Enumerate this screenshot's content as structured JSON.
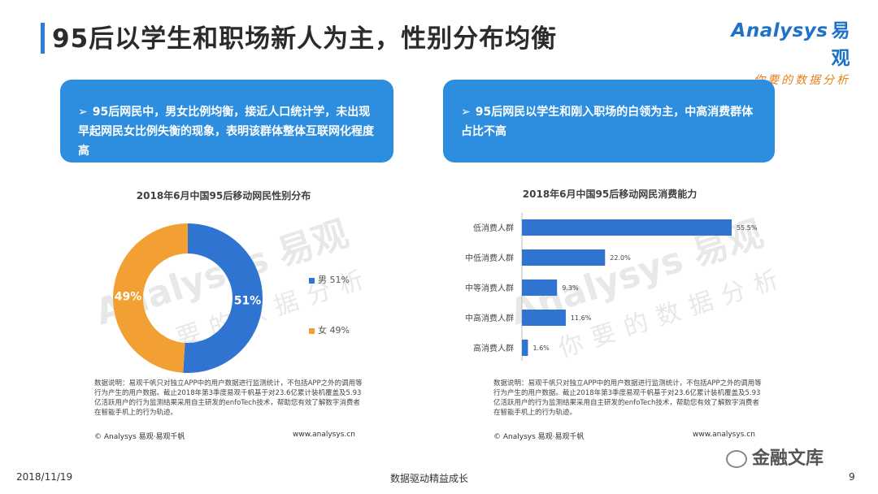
{
  "page": {
    "title": "95后以学生和职场新人为主，性别分布均衡",
    "logo_line1": "Analysys",
    "logo_line1_cn": "易观",
    "logo_line2": "你要的数据分析",
    "date": "2018/11/19",
    "footer_center": "数据驱动精益成长",
    "page_number": "9",
    "wechat_label": "金融文库"
  },
  "callouts": [
    {
      "arrow": "➢",
      "text": "95后网民中，男女比例均衡，接近人口统计学，未出现早起网民女比例失衡的现象，表明该群体整体互联网化程度高"
    },
    {
      "arrow": "➢",
      "text": "95后网民以学生和刚入职场的白领为主，中高消费群体占比不高"
    }
  ],
  "notes": {
    "text": "数据说明：易观千帆只对独立APP中的用户数据进行监测统计，不包括APP之外的调用等行为产生的用户数据。截止2018年第3季度易观千帆基于对23.6亿累计装机覆盖及5.93亿活跃用户的行为监测结果采用自主研发的enfoTech技术，帮助您有效了解数字消费者在智能手机上的行为轨迹。",
    "copyright": "© Analysys 易观·易观千帆",
    "site": "www.analysys.cn"
  },
  "watermark": {
    "brand": "Analysys 易观",
    "slogan": "你要的数据分析"
  },
  "chart_data": [
    {
      "type": "pie",
      "title": "2018年6月中国95后移动网民性别分布",
      "categories": [
        "男",
        "女"
      ],
      "values": [
        51,
        49
      ],
      "labels": [
        "51%",
        "49%"
      ],
      "legend": [
        "男 51%",
        "女 49%"
      ],
      "colors": [
        "#2f74d0",
        "#f2a033"
      ],
      "legend_position": "right"
    },
    {
      "type": "bar",
      "orientation": "horizontal",
      "title": "2018年6月中国95后移动网民消费能力",
      "categories": [
        "低消费人群",
        "中低消费人群",
        "中等消费人群",
        "中高消费人群",
        "高消费人群"
      ],
      "values": [
        55.5,
        22.0,
        9.3,
        11.6,
        1.6
      ],
      "labels": [
        "55.5%",
        "22.0%",
        "9.3%",
        "11.6%",
        "1.6%"
      ],
      "color": "#2f74d0",
      "xlim": [
        0,
        60
      ]
    }
  ]
}
